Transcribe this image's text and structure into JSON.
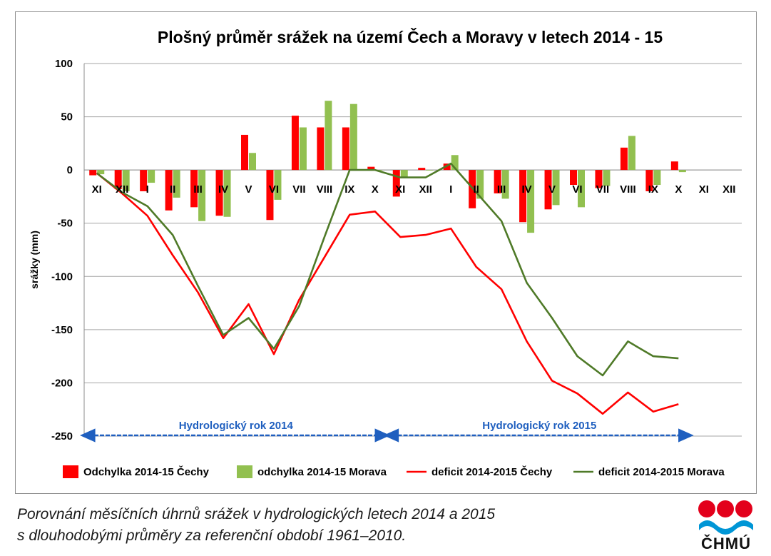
{
  "chart_data": {
    "type": "bar",
    "title": "Plošný průměr srážek na území Čech a Moravy v letech 2014 - 15",
    "ylabel": "srážky (mm)",
    "xlabel": "",
    "ylim": [
      -250,
      100
    ],
    "yticks": [
      100,
      50,
      0,
      -50,
      -100,
      -150,
      -200,
      -250
    ],
    "grid": true,
    "legend_position": "bottom",
    "categories": [
      "XI",
      "XII",
      "I",
      "II",
      "III",
      "IV",
      "V",
      "VI",
      "VII",
      "VIII",
      "IX",
      "X",
      "XI",
      "XII",
      "I",
      "II",
      "III",
      "IV",
      "V",
      "VI",
      "VII",
      "VIII",
      "IX",
      "X",
      "XI",
      "XII"
    ],
    "series": [
      {
        "name": "Odchylka 2014-15 Čechy",
        "kind": "bar",
        "color": "#ff0000",
        "values": [
          -5,
          -18,
          -20,
          -38,
          -35,
          -43,
          33,
          -47,
          51,
          40,
          40,
          3,
          -25,
          2,
          6,
          -36,
          -22,
          -49,
          -37,
          -14,
          -17,
          21,
          -20,
          8,
          null,
          null
        ]
      },
      {
        "name": "odchylka 2014-15 Morava",
        "kind": "bar",
        "color": "#92c050",
        "values": [
          -4,
          -20,
          -12,
          -26,
          -48,
          -44,
          16,
          -28,
          40,
          65,
          62,
          0,
          -7,
          0,
          14,
          -27,
          -27,
          -59,
          -33,
          -35,
          -15,
          32,
          -14,
          -2,
          null,
          null
        ]
      },
      {
        "name": "deficit 2014-2015 Čechy",
        "kind": "line",
        "color": "#ff0000",
        "values": [
          -3,
          -22,
          -43,
          -80,
          -115,
          -158,
          -126,
          -173,
          -122,
          -82,
          -42,
          -39,
          -63,
          -61,
          -55,
          -91,
          -112,
          -161,
          -198,
          -210,
          -229,
          -209,
          -227,
          -220,
          null,
          null
        ]
      },
      {
        "name": "deficit 2014-2015 Morava",
        "kind": "line",
        "color": "#4f7a28",
        "values": [
          -3,
          -21,
          -34,
          -61,
          -109,
          -155,
          -139,
          -168,
          -128,
          -63,
          0,
          0,
          -7,
          -7,
          6,
          -21,
          -48,
          -106,
          -139,
          -175,
          -193,
          -161,
          -175,
          -177,
          null,
          null
        ]
      }
    ],
    "annotations": [
      {
        "text": "Hydrologický rok 2014",
        "from": "XI",
        "to": "X",
        "color": "#1f5fbf"
      },
      {
        "text": "Hydrologický rok 2015",
        "from": "XI",
        "to": "X",
        "color": "#1f5fbf"
      }
    ]
  },
  "caption": {
    "line1": "Porovnání měsíčních úhrnů srážek v hydrologických letech 2014 a 2015",
    "line2": "s dlouhodobými průměry za referenční období 1961–2010."
  },
  "logo": {
    "text": "ČHMÚ",
    "circle_color": "#e3001b",
    "wave_color": "#0096d6"
  }
}
